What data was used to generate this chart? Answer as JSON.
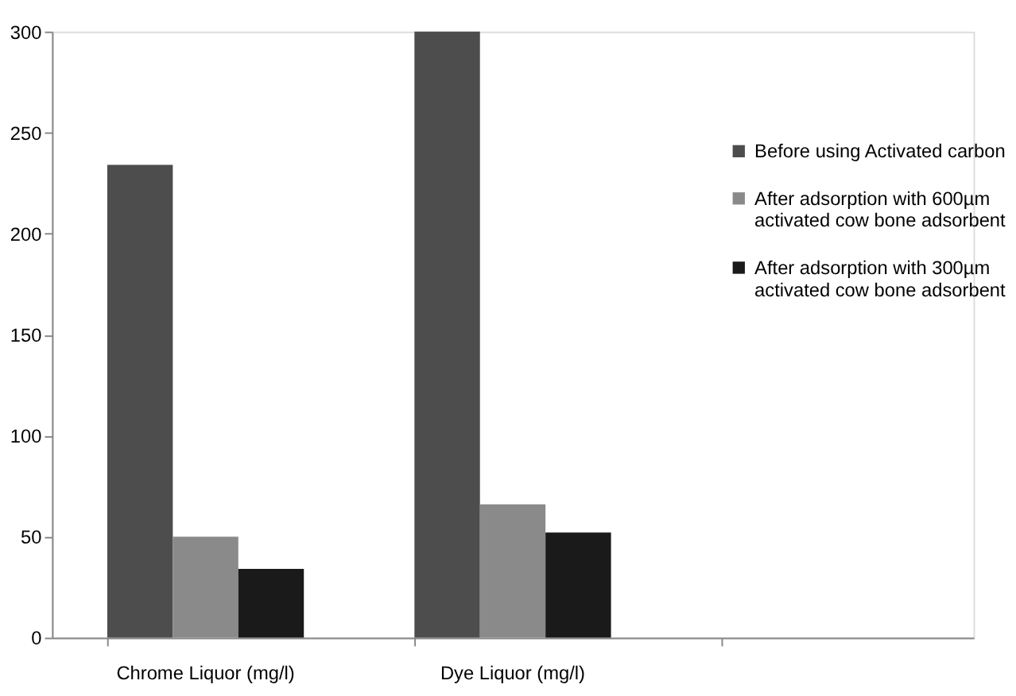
{
  "chart_data": {
    "type": "bar",
    "categories": [
      "Chrome Liquor (mg/l)",
      "Dye Liquor (mg/l)",
      null
    ],
    "series": [
      {
        "name": "Before using Activated carbon",
        "color": "#4d4d4d",
        "values": [
          234,
          300,
          null
        ]
      },
      {
        "name": "After adsorption with 600µm activated cow bone adsorbent",
        "color": "#8a8a8a",
        "values": [
          50,
          66,
          null
        ]
      },
      {
        "name": "After adsorption with 300µm activated cow bone adsorbent",
        "color": "#1a1a1a",
        "values": [
          34,
          52,
          null
        ]
      }
    ],
    "ylim": [
      0,
      300
    ],
    "yticks": [
      0,
      50,
      100,
      150,
      200,
      250,
      300
    ],
    "grid": false,
    "legend": "right"
  }
}
